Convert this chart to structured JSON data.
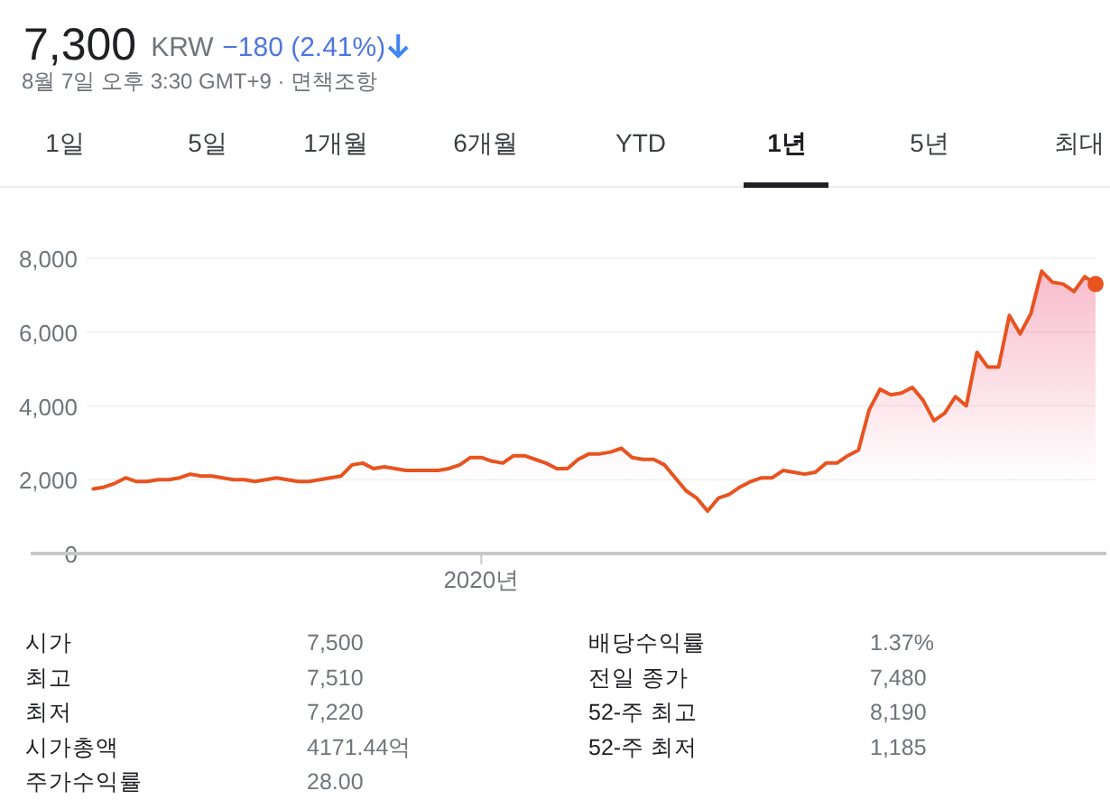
{
  "chart_data": [
    {
      "type": "area",
      "title": "7,300",
      "subtitle": "8월 7일 오후 3:30 GMT+9 · 면책조항",
      "annotations": [
        "KRW",
        "−180 (2.41%)",
        "1일",
        "5일",
        "1개월",
        "6개월",
        "YTD",
        "1년",
        "5년",
        "최대"
      ],
      "categories": [
        null,
        null,
        null,
        null,
        null,
        null,
        null,
        null,
        null,
        null,
        null,
        null,
        null,
        null,
        null,
        null,
        null,
        null,
        null,
        null,
        null,
        null,
        null,
        null,
        null,
        null,
        null,
        null,
        null,
        null,
        null,
        null,
        null,
        null,
        null,
        null,
        "2020년",
        null,
        null,
        null,
        null,
        null,
        null,
        null,
        null,
        null,
        null,
        null,
        null,
        null,
        null,
        null,
        null,
        null,
        null,
        null,
        null,
        null,
        null,
        null,
        null,
        null,
        null,
        null,
        null,
        null,
        null,
        null,
        null,
        null,
        null,
        null,
        null,
        null,
        null,
        null,
        null,
        null,
        null,
        null,
        null,
        null,
        null,
        null,
        null,
        null,
        null,
        null,
        null,
        null,
        null,
        null,
        null,
        null
      ],
      "series": [
        {
          "color": "#e8531f",
          "values": [
            1750,
            1800,
            1900,
            2050,
            1950,
            1950,
            2000,
            2000,
            2050,
            2150,
            2100,
            2100,
            2050,
            2000,
            2000,
            1950,
            2000,
            2050,
            2000,
            1950,
            1950,
            2000,
            2050,
            2100,
            2400,
            2450,
            2300,
            2350,
            2300,
            2250,
            2250,
            2250,
            2250,
            2300,
            2400,
            2600,
            2600,
            2500,
            2450,
            2650,
            2650,
            2550,
            2450,
            2300,
            2300,
            2550,
            2700,
            2700,
            2750,
            2850,
            2600,
            2550,
            2550,
            2400,
            2050,
            1700,
            1500,
            1150,
            1500,
            1600,
            1800,
            1950,
            2050,
            2050,
            2250,
            2200,
            2150,
            2200,
            2450,
            2450,
            2650,
            2800,
            3900,
            4450,
            4300,
            4350,
            4500,
            4150,
            3600,
            3800,
            4250,
            4000,
            5450,
            5050,
            5050,
            6450,
            5950,
            6500,
            7650,
            7350,
            7300,
            7100,
            7500,
            7300
          ]
        }
      ],
      "ylim": [
        0,
        8000
      ],
      "yticks": [
        {
          "value": 0,
          "label": "0"
        },
        {
          "value": 2000,
          "label": "2,000"
        },
        {
          "value": 4000,
          "label": "4,000"
        },
        {
          "value": 6000,
          "label": "6,000"
        },
        {
          "value": 8000,
          "label": "8,000"
        }
      ],
      "grid": "y"
    },
    {
      "type": "other",
      "annotations": [
        "시가",
        "7,500",
        "배당수익률",
        "1.37%",
        "최고",
        "7,510",
        "전일 종가",
        "7,480",
        "최저",
        "7,220",
        "52-주 최고",
        "8,190",
        "시가총액",
        "4171.44억",
        "52-주 최저",
        "1,185",
        "주가수익률",
        "28.00"
      ]
    }
  ]
}
